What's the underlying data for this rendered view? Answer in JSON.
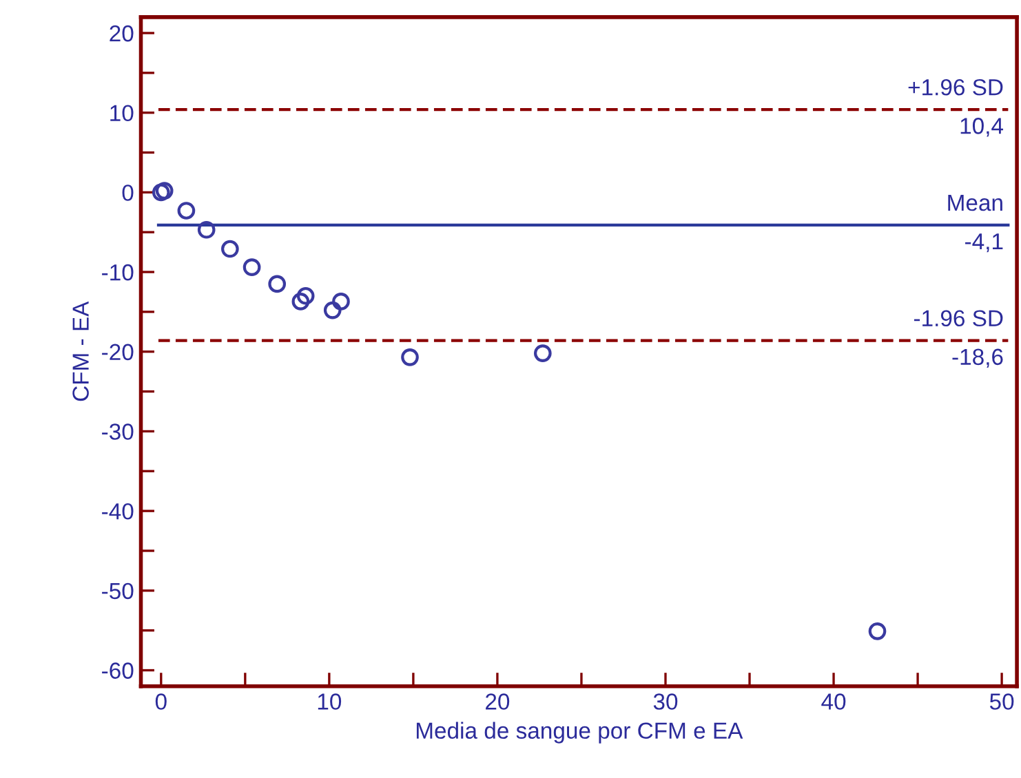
{
  "chart_data": {
    "type": "scatter",
    "xlabel": "Media de sangue por CFM e EA",
    "ylabel": "CFM - EA",
    "x": [
      0,
      0.2,
      1.5,
      2.7,
      4.1,
      5.4,
      6.9,
      8.3,
      8.6,
      10.2,
      10.7,
      14.8,
      22.7,
      42.6
    ],
    "series": [
      {
        "color": "#3a3aa0",
        "values": [
          0,
          0.2,
          -2.3,
          -4.7,
          -7.1,
          -9.4,
          -11.5,
          -13.7,
          -13.0,
          -14.8,
          -13.7,
          -20.7,
          -20.2,
          -55.1
        ]
      }
    ],
    "marker": "circle",
    "xlim": [
      -1.2,
      50.9
    ],
    "ylim": [
      -62,
      22
    ],
    "xticks": [
      0,
      {
        "value": 5,
        "label": null
      },
      10,
      {
        "value": 15,
        "label": null
      },
      20,
      {
        "value": 25,
        "label": null
      },
      30,
      {
        "value": 35,
        "label": null
      },
      40,
      {
        "value": 45,
        "label": null
      },
      50
    ],
    "yticks": [
      -60,
      {
        "value": -55,
        "label": null
      },
      -50,
      {
        "value": -45,
        "label": null
      },
      -40,
      {
        "value": -35,
        "label": null
      },
      -30,
      {
        "value": -25,
        "label": null
      },
      -20,
      {
        "value": -15,
        "label": null
      },
      -10,
      {
        "value": -5,
        "label": null
      },
      0,
      {
        "value": 5,
        "label": null
      },
      10,
      {
        "value": 15,
        "label": null
      },
      20
    ],
    "ref_lines": [
      {
        "axis": "y",
        "value": 10.4,
        "label": "+1.96 SD",
        "color": "#8b0000",
        "line_style": "dashed"
      },
      {
        "axis": "y",
        "value": -4.1,
        "label": "Mean",
        "color": "#2b3a9a",
        "line_style": "solid"
      },
      {
        "axis": "y",
        "value": -18.6,
        "label": "-1.96 SD",
        "color": "#8b0000",
        "line_style": "dashed"
      }
    ],
    "annotations": [
      {
        "text": "10,4",
        "y": 10.4
      },
      {
        "text": "-4,1",
        "y": -4.1
      },
      {
        "text": "-18,6",
        "y": -18.6
      }
    ],
    "grid": false,
    "legend": false
  }
}
